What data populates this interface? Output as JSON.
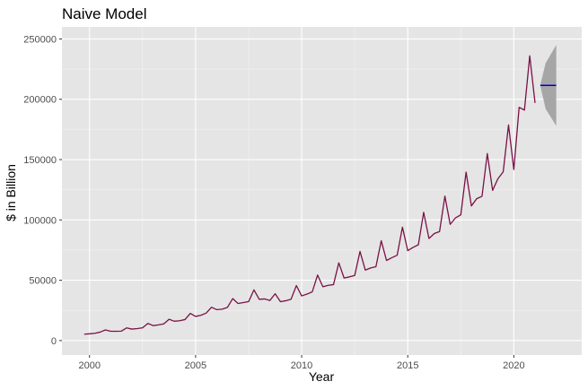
{
  "chart_data": {
    "type": "line",
    "title": "Naive Model",
    "xlabel": "Year",
    "ylabel": "$ in Billion",
    "xlim": [
      1998.7,
      2023.2
    ],
    "ylim": [
      -12000,
      260000
    ],
    "x_ticks": [
      2000,
      2005,
      2010,
      2015,
      2020
    ],
    "x_tick_labels": [
      "2000",
      "2005",
      "2010",
      "2015",
      "2020"
    ],
    "y_ticks": [
      0,
      50000,
      100000,
      150000,
      200000,
      250000
    ],
    "y_tick_labels": [
      "0",
      "50000",
      "100000",
      "150000",
      "200000",
      "250000"
    ],
    "grid": true,
    "series": [
      {
        "color": "#7b1146",
        "x": [
          1999.75,
          2000.0,
          2000.25,
          2000.5,
          2000.75,
          2001.0,
          2001.25,
          2001.5,
          2001.75,
          2002.0,
          2002.25,
          2002.5,
          2002.75,
          2003.0,
          2003.25,
          2003.5,
          2003.75,
          2004.0,
          2004.25,
          2004.5,
          2004.75,
          2005.0,
          2005.25,
          2005.5,
          2005.75,
          2006.0,
          2006.25,
          2006.5,
          2006.75,
          2007.0,
          2007.25,
          2007.5,
          2007.75,
          2008.0,
          2008.25,
          2008.5,
          2008.75,
          2009.0,
          2009.25,
          2009.5,
          2009.75,
          2010.0,
          2010.25,
          2010.5,
          2010.75,
          2011.0,
          2011.25,
          2011.5,
          2011.75,
          2012.0,
          2012.25,
          2012.5,
          2012.75,
          2013.0,
          2013.25,
          2013.5,
          2013.75,
          2014.0,
          2014.25,
          2014.5,
          2014.75,
          2015.0,
          2015.25,
          2015.5,
          2015.75,
          2016.0,
          2016.25,
          2016.5,
          2016.75,
          2017.0,
          2017.25,
          2017.5,
          2017.75,
          2018.0,
          2018.25,
          2018.5,
          2018.75,
          2019.0,
          2019.25,
          2019.5,
          2019.75,
          2020.0,
          2020.25,
          2020.5,
          2020.75,
          2021.0
        ],
        "values": [
          5300,
          5600,
          6000,
          7000,
          8800,
          7700,
          7700,
          7800,
          10500,
          9500,
          9900,
          10600,
          14200,
          12400,
          13000,
          13800,
          17600,
          16000,
          16400,
          17400,
          22500,
          20000,
          21000,
          22800,
          27600,
          25600,
          26000,
          27500,
          34800,
          30700,
          31500,
          32300,
          42000,
          34200,
          34500,
          33200,
          38800,
          32200,
          33000,
          34300,
          45600,
          37000,
          38500,
          40400,
          54300,
          44600,
          45800,
          46400,
          64400,
          51800,
          52800,
          54000,
          73900,
          58400,
          60200,
          61200,
          82700,
          66400,
          68700,
          70700,
          94000,
          74500,
          77200,
          79400,
          106300,
          84600,
          88700,
          90400,
          119700,
          96300,
          101700,
          104200,
          139600,
          111600,
          117600,
          119600,
          155000,
          124500,
          134100,
          139900,
          178700,
          141800,
          193300,
          191000,
          236000,
          197000
        ]
      },
      {
        "color": "#0000cc",
        "x": [
          2021.25,
          2022.0
        ],
        "values": [
          211500,
          211500
        ]
      }
    ],
    "interval": {
      "color": "#a6a6a6",
      "x": [
        2021.25,
        2021.5,
        2022.0
      ],
      "upper": [
        212000,
        230000,
        245000
      ],
      "lower": [
        211000,
        192000,
        178000
      ]
    }
  }
}
